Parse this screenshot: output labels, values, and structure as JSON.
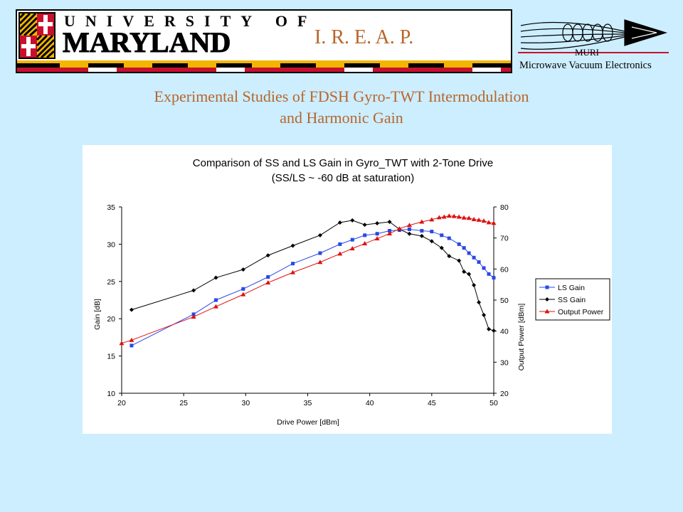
{
  "header": {
    "university_line1": "UNIVERSITY OF",
    "university_line2": "MARYLAND",
    "ireap": "I. R. E. A. P.",
    "muri_label": "MURI",
    "muri_sub": "Microwave Vacuum Electronics"
  },
  "slide_title_line1": "Experimental Studies of FDSH Gyro-TWT Intermodulation",
  "slide_title_line2": "and Harmonic Gain",
  "chart_data": {
    "type": "line",
    "title": "Comparison of SS and LS Gain in Gyro_TWT with 2-Tone Drive",
    "subtitle": "(SS/LS ~ -60 dB at saturation)",
    "xlabel": "Drive Power [dBm]",
    "ylabel": "Gain [dB]",
    "y2label": "Output Power [dBm]",
    "xlim": [
      20,
      50
    ],
    "ylim": [
      10,
      35
    ],
    "y2lim": [
      20,
      80
    ],
    "xticks": [
      20,
      25,
      30,
      35,
      40,
      45,
      50
    ],
    "yticks": [
      10,
      15,
      20,
      25,
      30,
      35
    ],
    "y2ticks": [
      20,
      30,
      40,
      50,
      60,
      70,
      80
    ],
    "legend_position": "right",
    "series": [
      {
        "name": "LS Gain",
        "axis": "left",
        "color": "#2a47e8",
        "marker": "square",
        "x": [
          20.8,
          25.8,
          27.6,
          29.8,
          31.8,
          33.8,
          36.0,
          37.6,
          38.6,
          39.6,
          40.6,
          41.6,
          42.4,
          43.2,
          44.2,
          45.0,
          45.8,
          46.4,
          47.2,
          47.6,
          48.0,
          48.4,
          48.8,
          49.2,
          49.6,
          50.0
        ],
        "values": [
          16.4,
          20.6,
          22.5,
          24.0,
          25.6,
          27.4,
          28.8,
          30.0,
          30.6,
          31.2,
          31.4,
          31.8,
          31.9,
          32.0,
          31.8,
          31.7,
          31.2,
          30.8,
          30.0,
          29.5,
          28.8,
          28.2,
          27.6,
          26.8,
          26.0,
          25.5
        ]
      },
      {
        "name": "SS Gain",
        "axis": "left",
        "color": "#000000",
        "marker": "diamond",
        "x": [
          20.8,
          25.8,
          27.6,
          29.8,
          31.8,
          33.8,
          36.0,
          37.6,
          38.6,
          39.6,
          40.6,
          41.6,
          42.4,
          43.2,
          44.2,
          45.0,
          45.8,
          46.4,
          47.2,
          47.6,
          48.0,
          48.4,
          48.8,
          49.2,
          49.6,
          50.0
        ],
        "values": [
          21.2,
          23.8,
          25.5,
          26.6,
          28.5,
          29.8,
          31.2,
          32.9,
          33.2,
          32.6,
          32.8,
          33.0,
          32.0,
          31.4,
          31.1,
          30.4,
          29.5,
          28.4,
          27.8,
          26.3,
          26.0,
          24.5,
          22.2,
          20.5,
          18.6,
          18.4
        ]
      },
      {
        "name": "Output Power",
        "axis": "right",
        "color": "#dd1111",
        "marker": "triangle",
        "x": [
          20.0,
          20.8,
          25.8,
          27.6,
          29.8,
          31.8,
          33.8,
          36.0,
          37.6,
          38.6,
          39.6,
          40.6,
          41.6,
          42.4,
          43.2,
          44.2,
          45.0,
          45.6,
          46.0,
          46.4,
          46.8,
          47.2,
          47.6,
          48.0,
          48.4,
          48.8,
          49.2,
          49.6,
          50.0
        ],
        "values": [
          36.1,
          37.1,
          44.6,
          47.9,
          51.8,
          55.6,
          58.9,
          62.2,
          64.9,
          66.6,
          68.2,
          69.8,
          71.4,
          73.0,
          74.1,
          75.2,
          75.9,
          76.6,
          76.8,
          77.1,
          77.0,
          76.8,
          76.5,
          76.4,
          76.0,
          75.8,
          75.5,
          75.0,
          74.8
        ]
      }
    ]
  }
}
